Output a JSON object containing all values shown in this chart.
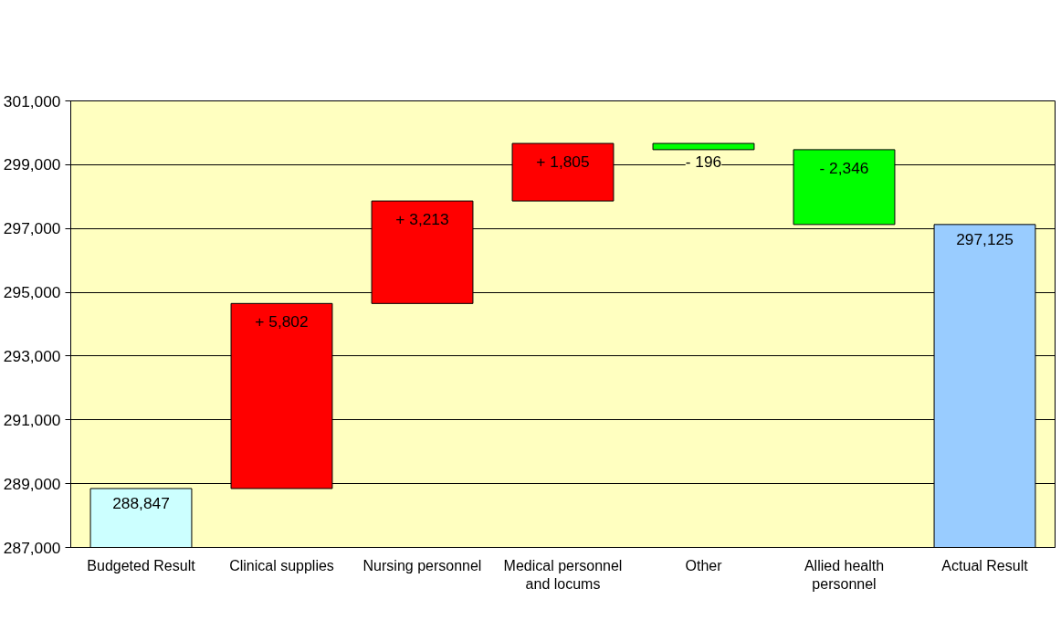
{
  "chart_data": {
    "type": "bar",
    "categories": [
      "Budgeted Result",
      "Clinical supplies",
      "Nursing personnel",
      "Medical personnel\nand locums",
      "Other",
      "Allied health\npersonnel",
      "Actual Result"
    ],
    "values": [
      288847,
      5802,
      3213,
      1805,
      -196,
      -2346,
      297125
    ],
    "base": [
      null,
      288847,
      294649,
      297862,
      299667,
      299471,
      null
    ],
    "colors": [
      "#ccffff",
      "#ff0000",
      "#ff0000",
      "#ff0000",
      "#00ff00",
      "#00ff00",
      "#99ccff"
    ],
    "value_labels": [
      "288,847",
      "+ 5,802",
      "+ 3,213",
      "+ 1,805",
      "- 196",
      "- 2,346",
      "297,125"
    ],
    "ylim": [
      287000,
      301000
    ],
    "yticks": [
      {
        "value": 287000,
        "label": "287,000"
      },
      {
        "value": 289000,
        "label": "289,000"
      },
      {
        "value": 291000,
        "label": "291,000"
      },
      {
        "value": 293000,
        "label": "293,000"
      },
      {
        "value": 295000,
        "label": "295,000"
      },
      {
        "value": 297000,
        "label": "297,000"
      },
      {
        "value": 299000,
        "label": "299,000"
      },
      {
        "value": 301000,
        "label": "301,000"
      }
    ],
    "grid": "y"
  }
}
